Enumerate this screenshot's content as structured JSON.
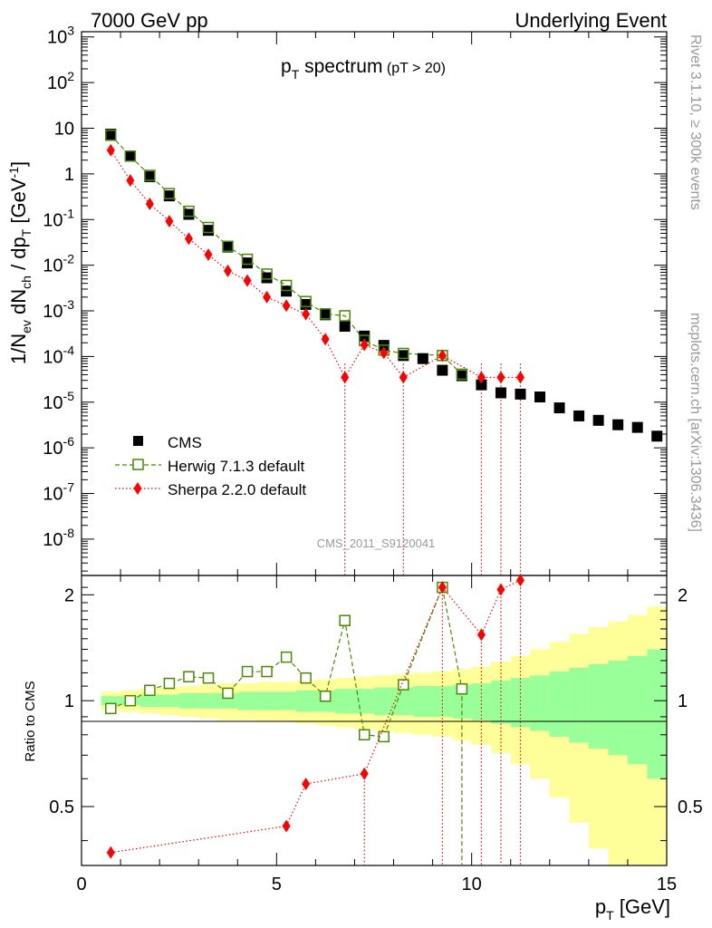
{
  "header": {
    "left": "7000 GeV pp",
    "right": "Underlying Event"
  },
  "side_text": {
    "rivet": "Rivet 3.1.10, ≥ 300k events",
    "mcplots": "mcplots.cern.ch [arXiv:1306.3436]"
  },
  "watermark": "CMS_2011_S9120041",
  "chart_data": {
    "type": "scatter",
    "title": "p_T spectrum (pT > 20)",
    "xlabel": "p_T [GeV]",
    "ylabel": "1/N_ev dN_ch / dp_T [GeV^-1]",
    "ratio_ylabel": "Ratio to CMS",
    "xlim": [
      0,
      15
    ],
    "ylim": [
      1.6e-09,
      1300.0
    ],
    "yscale": "log",
    "ratio_ylim": [
      0.34,
      2.27
    ],
    "ratio_yscale": "log",
    "x_ticks": [
      "0",
      "5",
      "10",
      "15"
    ],
    "y_ticks": [
      "10^{-8}",
      "10^{-7}",
      "10^{-6}",
      "10^{-5}",
      "10^{-4}",
      "10^{-3}",
      "10^{-2}",
      "10^{-1}",
      "1",
      "10",
      "10^{2}",
      "10^{3}"
    ],
    "ratio_ticks": [
      "0.5",
      "1",
      "2"
    ],
    "legend_position": "lower-left",
    "series": [
      {
        "name": "CMS",
        "color": "#000000",
        "marker": "filled-square",
        "x": [
          0.75,
          1.25,
          1.75,
          2.25,
          2.75,
          3.25,
          3.75,
          4.25,
          4.75,
          5.25,
          5.75,
          6.25,
          6.75,
          7.25,
          7.75,
          8.25,
          8.75,
          9.25,
          9.75,
          10.25,
          10.75,
          11.25,
          11.75,
          12.25,
          12.75,
          13.25,
          13.75,
          14.25,
          14.75
        ],
        "y": [
          7.4,
          2.45,
          0.87,
          0.33,
          0.13,
          0.058,
          0.025,
          0.0112,
          0.0053,
          0.0027,
          0.00138,
          0.00082,
          0.00046,
          0.00028,
          0.000175,
          0.000105,
          9e-05,
          5e-05,
          3.8e-05,
          2.4e-05,
          1.6e-05,
          1.5e-05,
          1.3e-05,
          7.5e-06,
          5e-06,
          4e-06,
          3.2e-06,
          2.8e-06,
          1.8e-06
        ]
      },
      {
        "name": "Herwig 7.1.3 default",
        "color": "#4a8a00",
        "marker": "open-square",
        "linestyle": "dashed",
        "x": [
          0.75,
          1.25,
          1.75,
          2.25,
          2.75,
          3.25,
          3.75,
          4.25,
          4.75,
          5.25,
          5.75,
          6.25,
          6.75,
          7.25,
          7.75,
          8.25,
          9.25,
          9.75
        ],
        "y": [
          7.0,
          2.45,
          0.93,
          0.37,
          0.152,
          0.067,
          0.026,
          0.0135,
          0.0064,
          0.0036,
          0.0016,
          0.00086,
          0.00078,
          0.000226,
          0.000138,
          0.000117,
          0.000105,
          4.1e-05
        ]
      },
      {
        "name": "Sherpa 2.2.0 default",
        "color": "#ff0000",
        "marker": "filled-diamond",
        "linestyle": "dotted",
        "x": [
          0.75,
          1.25,
          1.75,
          2.25,
          2.75,
          3.25,
          3.75,
          4.25,
          4.75,
          5.25,
          5.75,
          6.25,
          6.75,
          7.25,
          7.75,
          8.25,
          9.25,
          10.25,
          10.75,
          11.25
        ],
        "y": [
          3.3,
          0.72,
          0.22,
          0.092,
          0.038,
          0.017,
          0.0075,
          0.0046,
          0.002,
          0.0013,
          0.00085,
          0.00024,
          3.5e-05,
          0.00018,
          0.00012,
          3.5e-05,
          0.000105,
          3.5e-05,
          3.5e-05,
          3.5e-05
        ]
      }
    ],
    "ratio": {
      "herwig": [
        0.95,
        1.0,
        1.07,
        1.12,
        1.17,
        1.16,
        1.05,
        1.21,
        1.21,
        1.33,
        1.16,
        1.03,
        1.69,
        0.8,
        0.79,
        1.11,
        2.1,
        1.08
      ],
      "sherpa_x": [
        0.75,
        5.25,
        5.75,
        7.25,
        9.25,
        10.25,
        10.75,
        11.25
      ],
      "sherpa": [
        0.37,
        0.44,
        0.58,
        0.62,
        2.1,
        1.54,
        2.07,
        2.2
      ],
      "band_x_edges": [
        0.5,
        1.0,
        1.5,
        2.0,
        2.5,
        3.0,
        3.5,
        4.0,
        4.5,
        5.0,
        5.5,
        6.0,
        6.5,
        7.0,
        7.5,
        8.0,
        8.5,
        9.0,
        9.5,
        10.0,
        10.5,
        11.0,
        11.5,
        12.0,
        12.5,
        13.0,
        13.5,
        14.0,
        14.5,
        15.0
      ],
      "inner_band": [
        0.03,
        0.03,
        0.04,
        0.04,
        0.05,
        0.05,
        0.05,
        0.06,
        0.06,
        0.06,
        0.07,
        0.07,
        0.08,
        0.08,
        0.09,
        0.09,
        0.1,
        0.1,
        0.11,
        0.12,
        0.14,
        0.16,
        0.18,
        0.21,
        0.24,
        0.27,
        0.3,
        0.34,
        0.4
      ],
      "outer_band": [
        0.06,
        0.07,
        0.08,
        0.09,
        0.1,
        0.11,
        0.12,
        0.12,
        0.13,
        0.13,
        0.14,
        0.15,
        0.16,
        0.17,
        0.18,
        0.19,
        0.2,
        0.21,
        0.23,
        0.25,
        0.29,
        0.34,
        0.4,
        0.47,
        0.55,
        0.62,
        0.68,
        0.75,
        0.85
      ]
    }
  }
}
